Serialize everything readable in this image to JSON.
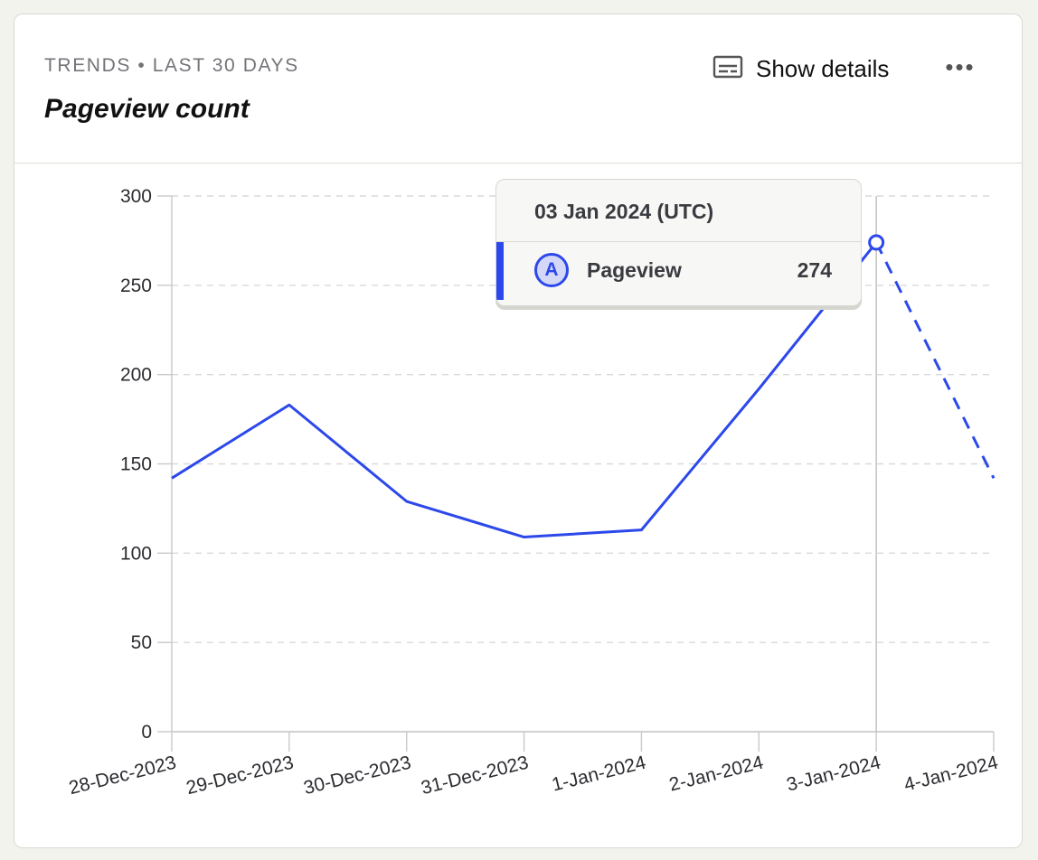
{
  "card": {
    "eyebrow": "TRENDS • LAST 30 DAYS",
    "title": "Pageview count",
    "show_details_label": "Show details",
    "show_details_icon": "subtitles-icon",
    "more_label": "•••",
    "more_icon": "more-dots-icon"
  },
  "tooltip": {
    "date": "03 Jan 2024 (UTC)",
    "badge": "A",
    "series_name": "Pageview",
    "value": "274"
  },
  "chart_data": {
    "type": "line",
    "categories": [
      "28-Dec-2023",
      "29-Dec-2023",
      "30-Dec-2023",
      "31-Dec-2023",
      "1-Jan-2024",
      "2-Jan-2024",
      "3-Jan-2024",
      "4-Jan-2024"
    ],
    "series": [
      {
        "name": "Pageview",
        "values": [
          142,
          183,
          129,
          109,
          113,
          192,
          274,
          142
        ]
      }
    ],
    "ylim": [
      0,
      300
    ],
    "yticks": [
      0,
      50,
      100,
      150,
      200,
      250,
      300
    ],
    "grid": true,
    "incomplete_from_index": 6,
    "highlighted_index": 6,
    "colors": {
      "series": "#2c48ea",
      "grid": "#d9d9d9",
      "axis": "#c9c9c9"
    }
  }
}
